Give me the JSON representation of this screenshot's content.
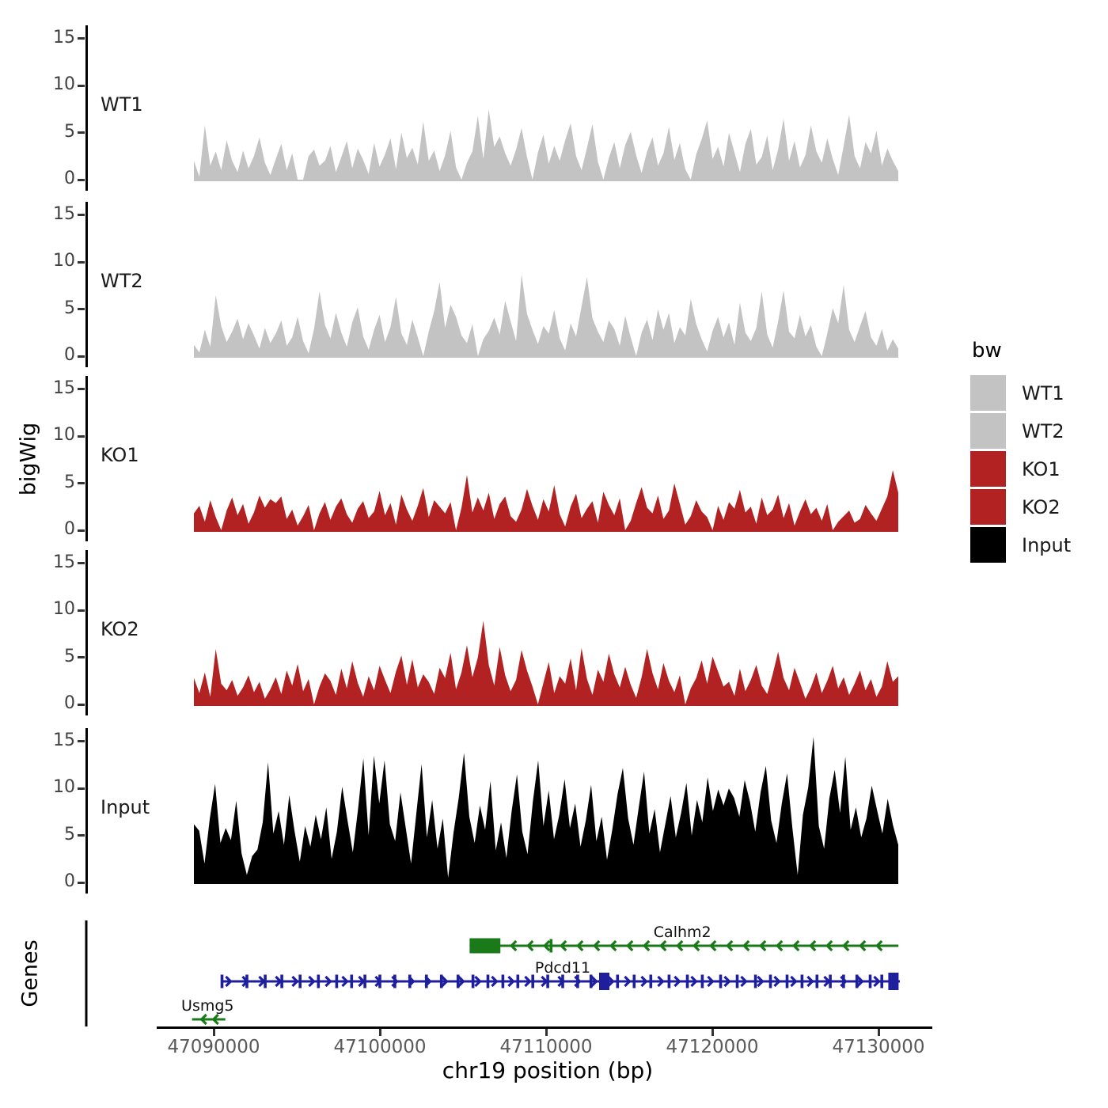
{
  "figure": {
    "y_axis_label": "bigWig",
    "genes_axis_label": "Genes",
    "x_axis_label": "chr19 position (bp)"
  },
  "legend": {
    "title": "bw",
    "entries": [
      {
        "label": "WT1",
        "color": "#c3c3c3"
      },
      {
        "label": "WT2",
        "color": "#c3c3c3"
      },
      {
        "label": "KO1",
        "color": "#b22222"
      },
      {
        "label": "KO2",
        "color": "#b22222"
      },
      {
        "label": "Input",
        "color": "#000000"
      }
    ]
  },
  "chart_data": {
    "type": "area",
    "title": "",
    "xlabel": "chr19 position (bp)",
    "ylabel": "bigWig",
    "chromosome": "chr19",
    "x_unit": "bp",
    "x_range": [
      47088800,
      47131200
    ],
    "x_ticks": [
      47090000,
      47100000,
      47110000,
      47120000,
      47130000
    ],
    "panel_ylim": [
      0,
      15.7
    ],
    "panel_yticks": [
      0,
      5,
      10,
      15
    ],
    "grid": false,
    "legend_position": "right",
    "series": [
      {
        "name": "WT1",
        "color": "#c3c3c3",
        "values": [
          2.0,
          0.3,
          5.8,
          1.5,
          3.0,
          1.0,
          4.2,
          2.0,
          0.8,
          3.1,
          1.2,
          2.5,
          4.5,
          1.8,
          0.5,
          2.2,
          3.8,
          1.0,
          2.8,
          0.0,
          0.0,
          2.5,
          3.2,
          1.5,
          2.0,
          3.6,
          0.8,
          2.4,
          4.1,
          1.2,
          3.3,
          2.1,
          0.6,
          3.9,
          1.4,
          2.7,
          4.4,
          1.1,
          5.0,
          2.3,
          3.4,
          1.6,
          6.2,
          2.0,
          3.1,
          0.9,
          2.6,
          5.2,
          1.3,
          0.0,
          1.8,
          3.0,
          6.8,
          2.2,
          7.5,
          3.5,
          4.6,
          2.8,
          1.5,
          3.2,
          5.5,
          2.4,
          0.0,
          2.9,
          4.8,
          1.7,
          3.6,
          2.0,
          4.2,
          6.0,
          2.5,
          1.0,
          3.4,
          5.9,
          1.9,
          0.0,
          2.3,
          4.0,
          1.2,
          3.7,
          5.1,
          2.6,
          0.7,
          3.0,
          4.5,
          1.5,
          2.8,
          5.6,
          2.1,
          3.9,
          1.1,
          0.0,
          2.7,
          4.3,
          6.3,
          2.2,
          3.5,
          1.4,
          5.0,
          2.9,
          0.8,
          3.8,
          5.4,
          1.6,
          2.4,
          4.7,
          1.0,
          3.2,
          6.5,
          2.0,
          4.1,
          1.3,
          2.6,
          5.8,
          3.0,
          1.8,
          4.4,
          2.2,
          0.5,
          3.6,
          6.9,
          2.5,
          1.2,
          4.0,
          2.8,
          5.2,
          1.5,
          3.3,
          2.0,
          0.9
        ]
      },
      {
        "name": "WT2",
        "color": "#c3c3c3",
        "values": [
          1.2,
          0.4,
          2.8,
          1.0,
          6.5,
          3.2,
          1.5,
          2.6,
          4.0,
          1.8,
          3.5,
          2.2,
          0.8,
          3.0,
          1.4,
          2.4,
          3.8,
          1.1,
          2.0,
          4.2,
          1.6,
          0.3,
          2.9,
          6.9,
          3.3,
          1.9,
          4.6,
          2.5,
          1.0,
          3.6,
          5.2,
          2.1,
          0.7,
          2.8,
          4.4,
          1.5,
          3.1,
          6.3,
          2.4,
          1.2,
          3.9,
          2.0,
          0.0,
          2.6,
          4.8,
          7.9,
          3.0,
          5.5,
          4.2,
          2.2,
          1.4,
          3.4,
          0.0,
          1.8,
          2.7,
          4.1,
          2.3,
          5.9,
          3.7,
          1.6,
          8.7,
          4.5,
          2.8,
          1.3,
          3.2,
          2.4,
          4.9,
          1.9,
          0.6,
          3.5,
          2.1,
          5.3,
          8.4,
          4.0,
          2.6,
          1.5,
          3.8,
          2.9,
          1.1,
          4.3,
          2.0,
          0.0,
          2.5,
          3.9,
          1.7,
          5.0,
          2.8,
          4.6,
          1.4,
          3.1,
          2.2,
          6.1,
          3.4,
          1.8,
          0.5,
          2.7,
          4.2,
          2.0,
          3.6,
          1.2,
          5.7,
          2.5,
          1.6,
          3.0,
          6.9,
          2.3,
          0.9,
          3.7,
          7.0,
          2.6,
          1.9,
          4.4,
          2.1,
          3.3,
          1.0,
          0.0,
          2.4,
          5.1,
          3.5,
          7.6,
          2.8,
          1.5,
          3.2,
          4.8,
          2.0,
          1.1,
          2.9,
          0.6,
          1.8,
          0.8
        ]
      },
      {
        "name": "KO1",
        "color": "#b22222",
        "values": [
          1.8,
          2.6,
          0.9,
          3.2,
          1.4,
          0.0,
          2.1,
          3.5,
          1.6,
          2.8,
          0.7,
          1.9,
          3.7,
          2.4,
          3.3,
          2.9,
          3.6,
          1.2,
          2.2,
          0.5,
          1.5,
          2.7,
          0.0,
          1.8,
          3.0,
          1.1,
          2.5,
          3.4,
          1.7,
          0.8,
          2.3,
          3.1,
          1.3,
          2.0,
          4.2,
          1.6,
          2.9,
          0.6,
          3.8,
          2.2,
          1.0,
          2.6,
          4.5,
          1.4,
          3.2,
          2.5,
          1.8,
          3.0,
          0.0,
          2.4,
          5.9,
          1.9,
          3.5,
          2.1,
          4.0,
          1.2,
          2.8,
          3.6,
          1.5,
          0.9,
          2.2,
          4.4,
          2.6,
          1.1,
          3.3,
          2.0,
          4.8,
          1.7,
          0.4,
          2.5,
          3.9,
          1.3,
          2.3,
          3.1,
          0.8,
          4.1,
          2.7,
          1.6,
          3.4,
          0.0,
          1.0,
          2.9,
          4.6,
          2.4,
          1.8,
          3.7,
          1.2,
          2.1,
          5.0,
          2.8,
          0.6,
          1.5,
          3.2,
          2.0,
          1.4,
          0.0,
          2.6,
          1.1,
          3.0,
          2.3,
          4.3,
          1.9,
          2.5,
          0.7,
          3.5,
          1.6,
          2.2,
          3.8,
          1.3,
          2.9,
          0.5,
          2.0,
          3.3,
          1.7,
          2.4,
          1.0,
          2.8,
          0.0,
          0.9,
          1.5,
          2.1,
          0.8,
          1.2,
          2.7,
          1.8,
          1.0,
          2.3,
          3.6,
          6.4,
          4.0
        ]
      },
      {
        "name": "KO2",
        "color": "#b22222",
        "values": [
          2.8,
          1.2,
          3.4,
          0.8,
          5.9,
          2.2,
          1.5,
          2.6,
          0.9,
          1.8,
          3.1,
          1.3,
          2.4,
          0.6,
          1.6,
          2.9,
          1.1,
          3.6,
          2.0,
          4.3,
          1.4,
          2.7,
          0.0,
          1.9,
          3.3,
          2.5,
          1.0,
          3.8,
          1.7,
          4.6,
          2.3,
          0.8,
          3.0,
          1.5,
          4.1,
          2.6,
          1.2,
          3.5,
          5.2,
          2.1,
          4.8,
          1.8,
          3.2,
          2.4,
          1.1,
          3.9,
          2.8,
          5.5,
          1.6,
          3.4,
          6.3,
          2.9,
          5.0,
          8.9,
          4.2,
          2.0,
          6.1,
          3.1,
          1.4,
          2.6,
          5.8,
          3.6,
          1.9,
          0.0,
          2.3,
          4.5,
          1.2,
          3.0,
          2.2,
          4.9,
          1.5,
          6.0,
          2.7,
          1.0,
          3.7,
          2.4,
          5.4,
          3.2,
          1.8,
          4.0,
          2.1,
          0.7,
          2.9,
          5.9,
          3.3,
          1.6,
          4.4,
          2.5,
          1.3,
          3.1,
          0.0,
          1.7,
          2.8,
          4.7,
          2.2,
          5.1,
          3.5,
          1.9,
          2.4,
          0.9,
          3.8,
          1.4,
          2.6,
          4.2,
          2.0,
          1.1,
          3.2,
          5.6,
          2.8,
          1.5,
          3.9,
          2.3,
          0.6,
          1.8,
          3.4,
          1.2,
          2.5,
          4.1,
          1.7,
          2.9,
          1.0,
          2.2,
          3.6,
          1.5,
          2.7,
          0.8,
          1.9,
          4.6,
          2.4,
          3.0
        ]
      },
      {
        "name": "Input",
        "color": "#000000",
        "values": [
          6.2,
          5.5,
          2.0,
          6.8,
          10.5,
          4.2,
          5.8,
          4.5,
          8.7,
          3.1,
          0.8,
          2.8,
          3.5,
          6.4,
          12.8,
          5.2,
          7.6,
          4.0,
          9.3,
          5.5,
          2.2,
          6.0,
          3.8,
          7.2,
          4.6,
          8.0,
          2.5,
          5.4,
          10.2,
          6.6,
          3.2,
          7.8,
          13.2,
          5.0,
          13.5,
          8.4,
          13.0,
          6.2,
          4.4,
          9.6,
          5.8,
          2.0,
          7.4,
          12.6,
          4.8,
          8.8,
          3.6,
          6.8,
          0.5,
          5.2,
          9.0,
          13.8,
          7.0,
          4.2,
          8.2,
          5.6,
          10.8,
          3.4,
          6.4,
          2.6,
          7.6,
          11.5,
          5.4,
          3.0,
          8.6,
          13.0,
          6.0,
          9.8,
          4.6,
          7.2,
          11.0,
          5.8,
          8.4,
          3.8,
          6.6,
          10.4,
          4.4,
          7.0,
          2.4,
          5.6,
          9.4,
          12.2,
          6.8,
          4.0,
          8.0,
          11.8,
          5.2,
          7.8,
          3.2,
          6.2,
          9.2,
          4.8,
          7.4,
          10.6,
          5.0,
          8.8,
          6.4,
          11.2,
          7.6,
          9.9,
          8.2,
          10.0,
          9.0,
          7.0,
          10.9,
          8.6,
          5.4,
          9.6,
          12.4,
          6.6,
          4.2,
          8.4,
          11.6,
          5.8,
          0.8,
          7.2,
          10.1,
          15.5,
          6.0,
          3.6,
          9.0,
          12.0,
          7.4,
          13.4,
          5.6,
          8.0,
          4.8,
          6.8,
          10.3,
          7.7,
          5.2,
          8.9,
          6.1,
          4.0
        ]
      }
    ],
    "genes": {
      "track_label": "Genes",
      "items": [
        {
          "name": "Calhm2",
          "color": "#1a7a1a",
          "strand": "-",
          "row": 0,
          "start": 47105400,
          "end": 47131200,
          "cds_box": [
            47105400,
            47107250
          ],
          "exon_ticks": [
            47110300
          ],
          "big_exons": [],
          "label_at": 47118200,
          "label_anchor": "middle"
        },
        {
          "name": "Pdcd11",
          "color": "#1f1f9e",
          "strand": "+",
          "row": 1,
          "start": 47090450,
          "end": 47131300,
          "cds_box": null,
          "exon_ticks": [
            47090500,
            47092000,
            47093100,
            47094100,
            47095200,
            47096300,
            47097400,
            47098300,
            47099100,
            47100000,
            47100900,
            47101800,
            47102800,
            47103700,
            47104700,
            47105600,
            47106500,
            47107400,
            47108300,
            47109200,
            47110100,
            47111000,
            47111900,
            47112700,
            47114300,
            47115300,
            47116300,
            47117400,
            47118500,
            47119400,
            47120500,
            47121500,
            47122600,
            47123500,
            47124500,
            47125400,
            47126300,
            47127100,
            47127900,
            47128700,
            47129500,
            47130200
          ],
          "big_exons": [
            47113500,
            47130900
          ],
          "label_at": 47111000,
          "label_anchor": "middle"
        },
        {
          "name": "Usmg5",
          "color": "#1a7a1a",
          "strand": "-",
          "row": 2,
          "start": 47088700,
          "end": 47090700,
          "cds_box": null,
          "exon_ticks": [],
          "big_exons": [],
          "label_at": 47088050,
          "label_anchor": "start"
        }
      ]
    }
  }
}
